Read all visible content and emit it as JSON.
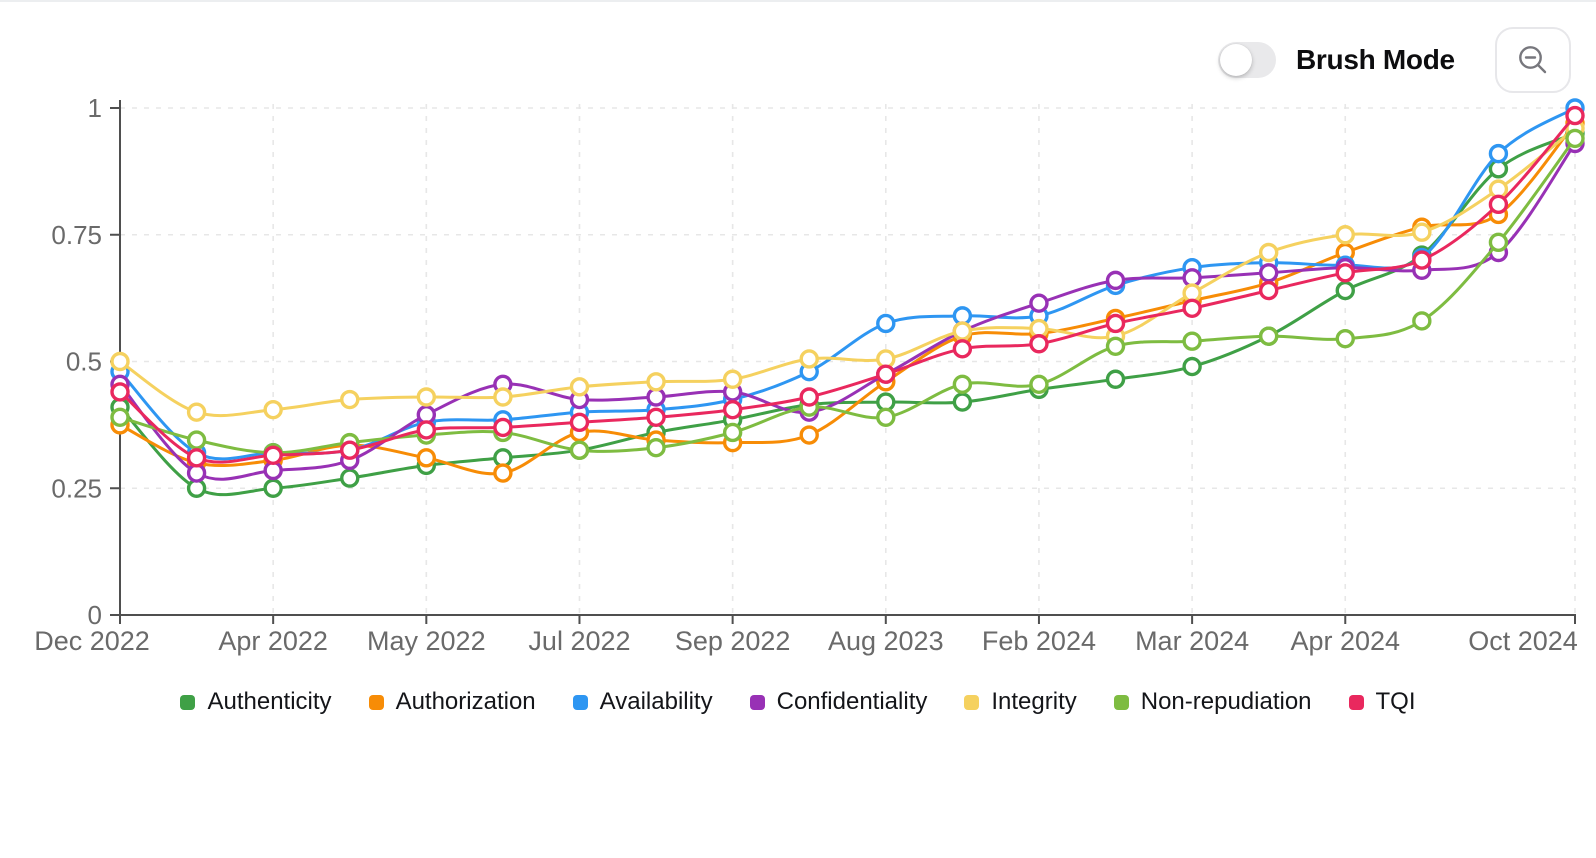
{
  "toolbar": {
    "brush_mode_label": "Brush Mode",
    "brush_mode_state": "off",
    "zoom_out_icon": "magnifier-minus-icon"
  },
  "chart_data": {
    "type": "line",
    "title": "",
    "xlabel": "",
    "ylabel": "",
    "ylim": [
      0,
      1
    ],
    "grid": "dashed",
    "marker": "open-circle",
    "legend_position": "bottom-center",
    "y_ticks": [
      0,
      0.25,
      0.5,
      0.75,
      1
    ],
    "y_tick_labels": [
      "0",
      "0.25",
      "0.5",
      "0.75",
      "1"
    ],
    "x_tick_labels": [
      "Dec 2022",
      "Apr 2022",
      "May 2022",
      "Jul 2022",
      "Sep 2022",
      "Aug 2023",
      "Feb 2024",
      "Mar 2024",
      "Apr 2024",
      "Oct 2024"
    ],
    "x_tick_point_indices": [
      0,
      2,
      4,
      6,
      8,
      10,
      12,
      14,
      16,
      19
    ],
    "num_points": 20,
    "series": [
      {
        "name": "Authenticity",
        "color": "#3fa046",
        "values": [
          0.41,
          0.25,
          0.25,
          0.27,
          0.295,
          0.31,
          0.325,
          0.36,
          0.385,
          0.415,
          0.42,
          0.42,
          0.445,
          0.465,
          0.49,
          0.55,
          0.64,
          0.71,
          0.88,
          0.95
        ]
      },
      {
        "name": "Authorization",
        "color": "#f78c06",
        "values": [
          0.375,
          0.3,
          0.305,
          0.335,
          0.31,
          0.28,
          0.36,
          0.345,
          0.34,
          0.355,
          0.46,
          0.55,
          0.555,
          0.585,
          0.62,
          0.655,
          0.715,
          0.765,
          0.79,
          0.97
        ]
      },
      {
        "name": "Availability",
        "color": "#2e96f2",
        "values": [
          0.48,
          0.32,
          0.32,
          0.325,
          0.38,
          0.385,
          0.4,
          0.405,
          0.425,
          0.48,
          0.575,
          0.59,
          0.59,
          0.65,
          0.685,
          0.695,
          0.69,
          0.705,
          0.91,
          1.0
        ]
      },
      {
        "name": "Confidentiality",
        "color": "#9831b5",
        "values": [
          0.455,
          0.28,
          0.285,
          0.305,
          0.395,
          0.455,
          0.425,
          0.43,
          0.44,
          0.4,
          0.475,
          0.56,
          0.615,
          0.66,
          0.665,
          0.675,
          0.685,
          0.68,
          0.715,
          0.93
        ]
      },
      {
        "name": "Integrity",
        "color": "#f5d15f",
        "values": [
          0.5,
          0.4,
          0.405,
          0.425,
          0.43,
          0.43,
          0.45,
          0.46,
          0.465,
          0.505,
          0.505,
          0.56,
          0.565,
          0.55,
          0.635,
          0.715,
          0.75,
          0.755,
          0.84,
          0.96
        ]
      },
      {
        "name": "Non-repudiation",
        "color": "#7ebc41",
        "values": [
          0.39,
          0.345,
          0.32,
          0.34,
          0.355,
          0.36,
          0.325,
          0.33,
          0.36,
          0.41,
          0.39,
          0.455,
          0.455,
          0.53,
          0.54,
          0.55,
          0.545,
          0.58,
          0.735,
          0.94
        ]
      },
      {
        "name": "TQI",
        "color": "#e9285e",
        "values": [
          0.44,
          0.31,
          0.315,
          0.325,
          0.365,
          0.37,
          0.38,
          0.39,
          0.405,
          0.43,
          0.475,
          0.525,
          0.535,
          0.575,
          0.605,
          0.64,
          0.675,
          0.7,
          0.81,
          0.985
        ]
      }
    ],
    "style_colors": {
      "axis": "#4f4f4f",
      "grid": "#e7e7e7",
      "tick_text": "#6a6a6a",
      "legend_text": "#141519"
    }
  }
}
